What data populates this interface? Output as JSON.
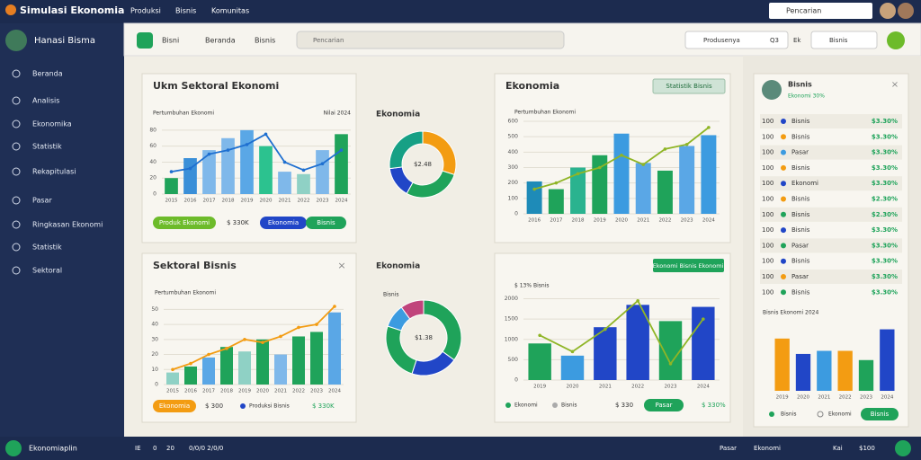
{
  "header": {
    "brand": "Simulasi Ekonomia",
    "nav": [
      "Produksi",
      "Bisnis",
      "Komunitas"
    ],
    "search": "Pencarian"
  },
  "sidebar": {
    "user": "Hanasi Bisma",
    "items": [
      "Beranda",
      "Analisis",
      "Ekonomika",
      "Statistik",
      "Rekapitulasi",
      "Pasar",
      "Ringkasan Ekonomi",
      "Statistik",
      "Sektoral"
    ],
    "footer": "Ekonomiaplin"
  },
  "toolbar": {
    "tabs": [
      "Bisni",
      "Beranda",
      "Bisnis"
    ],
    "search": "Pencarian",
    "filter": "Produsenya",
    "filter_code": "Q3",
    "filter_tag": "Ek",
    "select": "Bisnis"
  },
  "panels": [
    {
      "title": "Ukm Sektoral Ekonomi",
      "chips": [
        "Produk Ekonomi",
        "$ 330K",
        "Ekonomia",
        "Bisnis"
      ],
      "chart": {
        "type": "combo",
        "subtitle": "Pertumbuhan Ekonomi",
        "legend": "Nilai 2024",
        "categories": [
          "2015",
          "2016",
          "2017",
          "2018",
          "2019",
          "2020",
          "2021",
          "2022",
          "2023",
          "2024"
        ],
        "series": [
          {
            "name": "Produksi",
            "type": "bar",
            "colors": [
              "#1fa35a",
              "#3a8fd8",
              "#7fb8ea",
              "#7fb8ea",
              "#5aa7e6",
              "#2cc28f",
              "#7fb8ea",
              "#8fd1c5",
              "#7fb8ea",
              "#1fa35a"
            ],
            "values": [
              20,
              45,
              55,
              70,
              80,
              60,
              28,
              25,
              55,
              75
            ]
          },
          {
            "name": "Pasar",
            "type": "line",
            "color": "#1e6fd0",
            "values": [
              28,
              32,
              50,
              55,
              62,
              75,
              40,
              30,
              38,
              55
            ]
          }
        ],
        "ylim": [
          0,
          90
        ],
        "yticks": [
          0,
          20,
          40,
          60,
          80
        ]
      }
    },
    {
      "title": "Ekonomia",
      "chart": {
        "type": "donut",
        "center": "$2.48",
        "values": [
          30,
          28,
          15,
          27
        ],
        "colors": [
          "#f39c12",
          "#1fa35a",
          "#2146c7",
          "#16a085"
        ]
      }
    },
    {
      "title": "Ekonomia",
      "button": "Statistik Bisnis",
      "chart": {
        "type": "combo",
        "subtitle": "Pertumbuhan Ekonomi",
        "categories": [
          "2016",
          "2017",
          "2018",
          "2019",
          "2020",
          "2021",
          "2022",
          "2023",
          "2024"
        ],
        "series": [
          {
            "name": "Produksi",
            "type": "bar",
            "colors": [
              "#1e8bb8",
              "#1fa35a",
              "#2ab38f",
              "#1fa35a",
              "#3c9be0",
              "#5aa7e6",
              "#1fa35a",
              "#5aa7e6",
              "#3c9be0"
            ],
            "values": [
              210,
              160,
              300,
              380,
              520,
              330,
              280,
              440,
              510
            ]
          },
          {
            "name": "Pasar",
            "type": "line",
            "color": "#8fb526",
            "values": [
              160,
              200,
              260,
              300,
              380,
              320,
              420,
              450,
              560
            ]
          }
        ],
        "ylim": [
          0,
          600
        ],
        "yticks": [
          0,
          100,
          200,
          300,
          400,
          500,
          600
        ]
      }
    },
    {
      "title": "Sektoral Bisnis",
      "chips": [
        "Ekonomia",
        "$ 300",
        "Produksi Bisnis",
        "$ 330K"
      ],
      "chart": {
        "type": "combo",
        "subtitle": "Pertumbuhan Ekonomi",
        "categories": [
          "2015",
          "2016",
          "2017",
          "2018",
          "2019",
          "2020",
          "2021",
          "2022",
          "2023",
          "2024"
        ],
        "series": [
          {
            "name": "Produksi",
            "type": "bar",
            "colors": [
              "#8fd1c5",
              "#1fa35a",
              "#5aa7e6",
              "#1fa35a",
              "#8fd1c5",
              "#1fa35a",
              "#7fb8ea",
              "#1fa35a",
              "#1fa35a",
              "#5aa7e6"
            ],
            "values": [
              8,
              12,
              18,
              25,
              22,
              30,
              20,
              32,
              35,
              48
            ]
          },
          {
            "name": "Pasar",
            "type": "line",
            "color": "#f39c12",
            "values": [
              10,
              14,
              20,
              24,
              30,
              28,
              32,
              38,
              40,
              52
            ]
          }
        ],
        "ylim": [
          0,
          55
        ],
        "yticks": [
          0,
          10,
          20,
          30,
          40,
          50
        ]
      }
    },
    {
      "title": "Ekonomia",
      "chart": {
        "type": "donut",
        "center": "$1.38",
        "legend": "Bisnis",
        "values": [
          35,
          20,
          25,
          10,
          10
        ],
        "colors": [
          "#1fa35a",
          "#2146c7",
          "#1fa35a",
          "#3c9be0",
          "#c0447c"
        ]
      }
    },
    {
      "button": "Ekonomi Bisnis Ekonomi",
      "chips": [
        "Ekonomi",
        "Bisnis",
        "$ 330",
        "Pasar",
        "$ 330%"
      ],
      "chart": {
        "type": "combo",
        "subtitle": "$ 13% Bisnis",
        "categories": [
          "2019",
          "2020",
          "2021",
          "2022",
          "2023",
          "2024"
        ],
        "series": [
          {
            "name": "Produksi",
            "type": "bar",
            "colors": [
              "#1fa35a",
              "#3c9be0",
              "#2146c7",
              "#2146c7",
              "#1fa35a",
              "#2146c7"
            ],
            "values": [
              900,
              600,
              1300,
              1850,
              1450,
              1800
            ]
          },
          {
            "name": "Pasar",
            "type": "line",
            "color": "#8fb526",
            "values": [
              1100,
              700,
              1250,
              1950,
              400,
              1500
            ]
          }
        ],
        "ylim": [
          0,
          2100
        ],
        "yticks": [
          0,
          500,
          1000,
          1500,
          2000
        ]
      }
    }
  ],
  "right_panel": {
    "title": "Bisnis",
    "subtitle": "Ekonomi 30%",
    "rows": [
      [
        "100",
        "Bisnis",
        "$3.30%"
      ],
      [
        "100",
        "Bisnis",
        "$3.30%"
      ],
      [
        "100",
        "Pasar",
        "$3.30%"
      ],
      [
        "100",
        "Bisnis",
        "$3.30%"
      ],
      [
        "100",
        "Ekonomi",
        "$3.30%"
      ],
      [
        "100",
        "Bisnis",
        "$2.30%"
      ],
      [
        "100",
        "Bisnis",
        "$2.30%"
      ],
      [
        "100",
        "Bisnis",
        "$3.30%"
      ],
      [
        "100",
        "Pasar",
        "$3.30%"
      ],
      [
        "100",
        "Bisnis",
        "$3.30%"
      ],
      [
        "100",
        "Pasar",
        "$3.30%"
      ],
      [
        "100",
        "Bisnis",
        "$3.30%"
      ]
    ],
    "row_colors": [
      "#2146c7",
      "#f39c12",
      "#3c9be0",
      "#f39c12",
      "#2146c7",
      "#f39c12",
      "#1fa35a",
      "#2146c7",
      "#1fa35a",
      "#2146c7",
      "#f39c12",
      "#1fa35a"
    ],
    "chart": {
      "type": "bar",
      "subtitle": "Bisnis Ekonomi 2024",
      "categories": [
        "2019",
        "2020",
        "2021",
        "2022",
        "2023",
        "2024"
      ],
      "series": [
        {
          "name": "Bisnis",
          "type": "bar",
          "colors": [
            "#f39c12",
            "#2146c7",
            "#3c9be0",
            "#f39c12",
            "#1fa35a",
            "#2146c7"
          ],
          "values": [
            68,
            48,
            52,
            52,
            40,
            80
          ]
        }
      ],
      "ylim": [
        0,
        90
      ]
    },
    "legend": [
      "Bisnis",
      "Ekonomi"
    ],
    "button": "Bisnis"
  },
  "footer": {
    "items": [
      "IE",
      "0",
      "20",
      "0/0/0 2/0/0"
    ],
    "right": [
      "Pasar",
      "Ekonomi",
      "Kai",
      "$100"
    ]
  }
}
